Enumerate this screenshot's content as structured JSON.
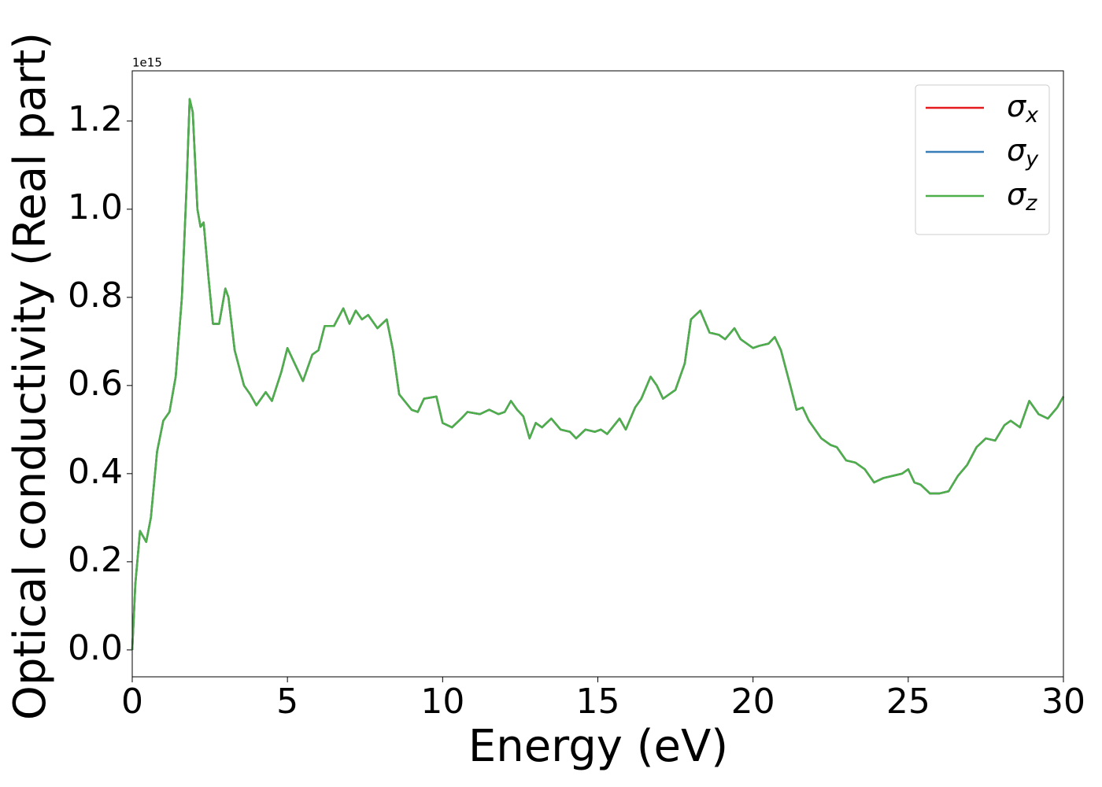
{
  "chart_data": {
    "type": "line",
    "xlabel": "Energy (eV)",
    "ylabel": "Optical conductivity (Real part)",
    "offset_label": "1e15",
    "xlim": [
      0,
      30
    ],
    "ylim": [
      -0.061,
      1.314
    ],
    "xticks": [
      0,
      5,
      10,
      15,
      20,
      25,
      30
    ],
    "yticks": [
      {
        "value": 0,
        "label": "0.0"
      },
      0.2,
      0.4,
      0.6,
      0.8,
      {
        "value": 1,
        "label": "1.0"
      },
      1.2
    ],
    "legend": "upper right",
    "x": [
      0,
      0.1,
      0.25,
      0.45,
      0.6,
      0.8,
      1.0,
      1.2,
      1.4,
      1.6,
      1.75,
      1.85,
      1.95,
      2.1,
      2.2,
      2.3,
      2.45,
      2.6,
      2.8,
      3.0,
      3.1,
      3.3,
      3.6,
      3.8,
      4.0,
      4.3,
      4.5,
      4.8,
      5.0,
      5.2,
      5.5,
      5.8,
      6.0,
      6.2,
      6.5,
      6.8,
      7.0,
      7.2,
      7.4,
      7.6,
      7.9,
      8.2,
      8.4,
      8.6,
      9.0,
      9.2,
      9.4,
      9.8,
      10.0,
      10.3,
      10.6,
      10.8,
      11.2,
      11.5,
      11.8,
      12.0,
      12.2,
      12.4,
      12.6,
      12.8,
      13.0,
      13.2,
      13.5,
      13.8,
      14.1,
      14.3,
      14.6,
      14.9,
      15.1,
      15.3,
      15.7,
      15.9,
      16.2,
      16.4,
      16.7,
      16.9,
      17.1,
      17.3,
      17.5,
      17.8,
      18.0,
      18.3,
      18.6,
      18.9,
      19.1,
      19.4,
      19.6,
      19.8,
      20.0,
      20.2,
      20.5,
      20.7,
      20.9,
      21.2,
      21.4,
      21.6,
      21.8,
      22.2,
      22.5,
      22.7,
      23.0,
      23.3,
      23.6,
      23.9,
      24.2,
      24.5,
      24.8,
      25.0,
      25.2,
      25.4,
      25.7,
      26.0,
      26.3,
      26.6,
      26.9,
      27.2,
      27.5,
      27.8,
      28.1,
      28.3,
      28.6,
      28.9,
      29.2,
      29.5,
      29.8,
      30.0
    ],
    "series": [
      {
        "name": "σx",
        "color": "#e41a1c",
        "values": [
          0,
          0.15,
          0.27,
          0.245,
          0.3,
          0.45,
          0.52,
          0.54,
          0.62,
          0.8,
          1.05,
          1.25,
          1.22,
          1.0,
          0.96,
          0.97,
          0.85,
          0.74,
          0.74,
          0.82,
          0.8,
          0.68,
          0.6,
          0.58,
          0.555,
          0.585,
          0.565,
          0.63,
          0.685,
          0.655,
          0.61,
          0.67,
          0.68,
          0.735,
          0.735,
          0.775,
          0.74,
          0.77,
          0.75,
          0.76,
          0.73,
          0.75,
          0.68,
          0.58,
          0.545,
          0.54,
          0.57,
          0.575,
          0.515,
          0.505,
          0.525,
          0.54,
          0.535,
          0.545,
          0.535,
          0.54,
          0.565,
          0.545,
          0.53,
          0.48,
          0.515,
          0.505,
          0.525,
          0.5,
          0.495,
          0.48,
          0.5,
          0.495,
          0.5,
          0.49,
          0.525,
          0.5,
          0.55,
          0.57,
          0.62,
          0.6,
          0.57,
          0.58,
          0.59,
          0.65,
          0.75,
          0.77,
          0.72,
          0.715,
          0.705,
          0.73,
          0.705,
          0.695,
          0.685,
          0.69,
          0.695,
          0.71,
          0.68,
          0.6,
          0.545,
          0.55,
          0.52,
          0.48,
          0.465,
          0.46,
          0.43,
          0.425,
          0.41,
          0.38,
          0.39,
          0.395,
          0.4,
          0.41,
          0.38,
          0.375,
          0.355,
          0.355,
          0.36,
          0.395,
          0.42,
          0.46,
          0.48,
          0.475,
          0.51,
          0.52,
          0.505,
          0.565,
          0.535,
          0.525,
          0.55,
          0.575
        ]
      },
      {
        "name": "σy",
        "color": "#377eb8",
        "values": [
          0,
          0.15,
          0.27,
          0.245,
          0.3,
          0.45,
          0.52,
          0.54,
          0.62,
          0.8,
          1.05,
          1.25,
          1.22,
          1.0,
          0.96,
          0.97,
          0.85,
          0.74,
          0.74,
          0.82,
          0.8,
          0.68,
          0.6,
          0.58,
          0.555,
          0.585,
          0.565,
          0.63,
          0.685,
          0.655,
          0.61,
          0.67,
          0.68,
          0.735,
          0.735,
          0.775,
          0.74,
          0.77,
          0.75,
          0.76,
          0.73,
          0.75,
          0.68,
          0.58,
          0.545,
          0.54,
          0.57,
          0.575,
          0.515,
          0.505,
          0.525,
          0.54,
          0.535,
          0.545,
          0.535,
          0.54,
          0.565,
          0.545,
          0.53,
          0.48,
          0.515,
          0.505,
          0.525,
          0.5,
          0.495,
          0.48,
          0.5,
          0.495,
          0.5,
          0.49,
          0.525,
          0.5,
          0.55,
          0.57,
          0.62,
          0.6,
          0.57,
          0.58,
          0.59,
          0.65,
          0.75,
          0.77,
          0.72,
          0.715,
          0.705,
          0.73,
          0.705,
          0.695,
          0.685,
          0.69,
          0.695,
          0.71,
          0.68,
          0.6,
          0.545,
          0.55,
          0.52,
          0.48,
          0.465,
          0.46,
          0.43,
          0.425,
          0.41,
          0.38,
          0.39,
          0.395,
          0.4,
          0.41,
          0.38,
          0.375,
          0.355,
          0.355,
          0.36,
          0.395,
          0.42,
          0.46,
          0.48,
          0.475,
          0.51,
          0.52,
          0.505,
          0.565,
          0.535,
          0.525,
          0.55,
          0.575
        ]
      },
      {
        "name": "σz",
        "color": "#4daf4a",
        "values": [
          0,
          0.15,
          0.27,
          0.245,
          0.3,
          0.45,
          0.52,
          0.54,
          0.62,
          0.8,
          1.05,
          1.25,
          1.22,
          1.0,
          0.96,
          0.97,
          0.85,
          0.74,
          0.74,
          0.82,
          0.8,
          0.68,
          0.6,
          0.58,
          0.555,
          0.585,
          0.565,
          0.63,
          0.685,
          0.655,
          0.61,
          0.67,
          0.68,
          0.735,
          0.735,
          0.775,
          0.74,
          0.77,
          0.75,
          0.76,
          0.73,
          0.75,
          0.68,
          0.58,
          0.545,
          0.54,
          0.57,
          0.575,
          0.515,
          0.505,
          0.525,
          0.54,
          0.535,
          0.545,
          0.535,
          0.54,
          0.565,
          0.545,
          0.53,
          0.48,
          0.515,
          0.505,
          0.525,
          0.5,
          0.495,
          0.48,
          0.5,
          0.495,
          0.5,
          0.49,
          0.525,
          0.5,
          0.55,
          0.57,
          0.62,
          0.6,
          0.57,
          0.58,
          0.59,
          0.65,
          0.75,
          0.77,
          0.72,
          0.715,
          0.705,
          0.73,
          0.705,
          0.695,
          0.685,
          0.69,
          0.695,
          0.71,
          0.68,
          0.6,
          0.545,
          0.55,
          0.52,
          0.48,
          0.465,
          0.46,
          0.43,
          0.425,
          0.41,
          0.38,
          0.39,
          0.395,
          0.4,
          0.41,
          0.38,
          0.375,
          0.355,
          0.355,
          0.36,
          0.395,
          0.42,
          0.46,
          0.48,
          0.475,
          0.51,
          0.52,
          0.505,
          0.565,
          0.535,
          0.525,
          0.55,
          0.575
        ]
      }
    ]
  }
}
